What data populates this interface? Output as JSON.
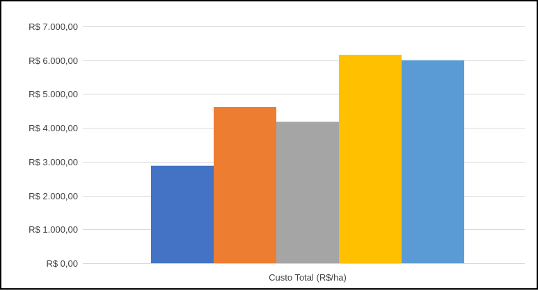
{
  "chart_data": {
    "type": "bar",
    "categories": [
      "Custo Total (R$/ha)"
    ],
    "series": [
      {
        "values": [
          2880
        ],
        "color": "#4472C4"
      },
      {
        "values": [
          4620
        ],
        "color": "#ED7D31"
      },
      {
        "values": [
          4180
        ],
        "color": "#A5A5A5"
      },
      {
        "values": [
          6160
        ],
        "color": "#FFC000"
      },
      {
        "values": [
          6000
        ],
        "color": "#5B9BD5"
      }
    ],
    "title": "",
    "xlabel": "",
    "ylabel": "",
    "ylim": [
      0,
      7000
    ],
    "yticks": [
      0,
      1000,
      2000,
      3000,
      4000,
      5000,
      6000,
      7000
    ],
    "ytick_labels": [
      "R$ 0,00",
      "R$ 1.000,00",
      "R$ 2.000,00",
      "R$ 3.000,00",
      "R$ 4.000,00",
      "R$ 5.000,00",
      "R$ 6.000,00",
      "R$ 7.000,00"
    ],
    "grid": true,
    "legend": "none",
    "gridline_color": "#D9D9D9",
    "text_color": "#404040"
  }
}
